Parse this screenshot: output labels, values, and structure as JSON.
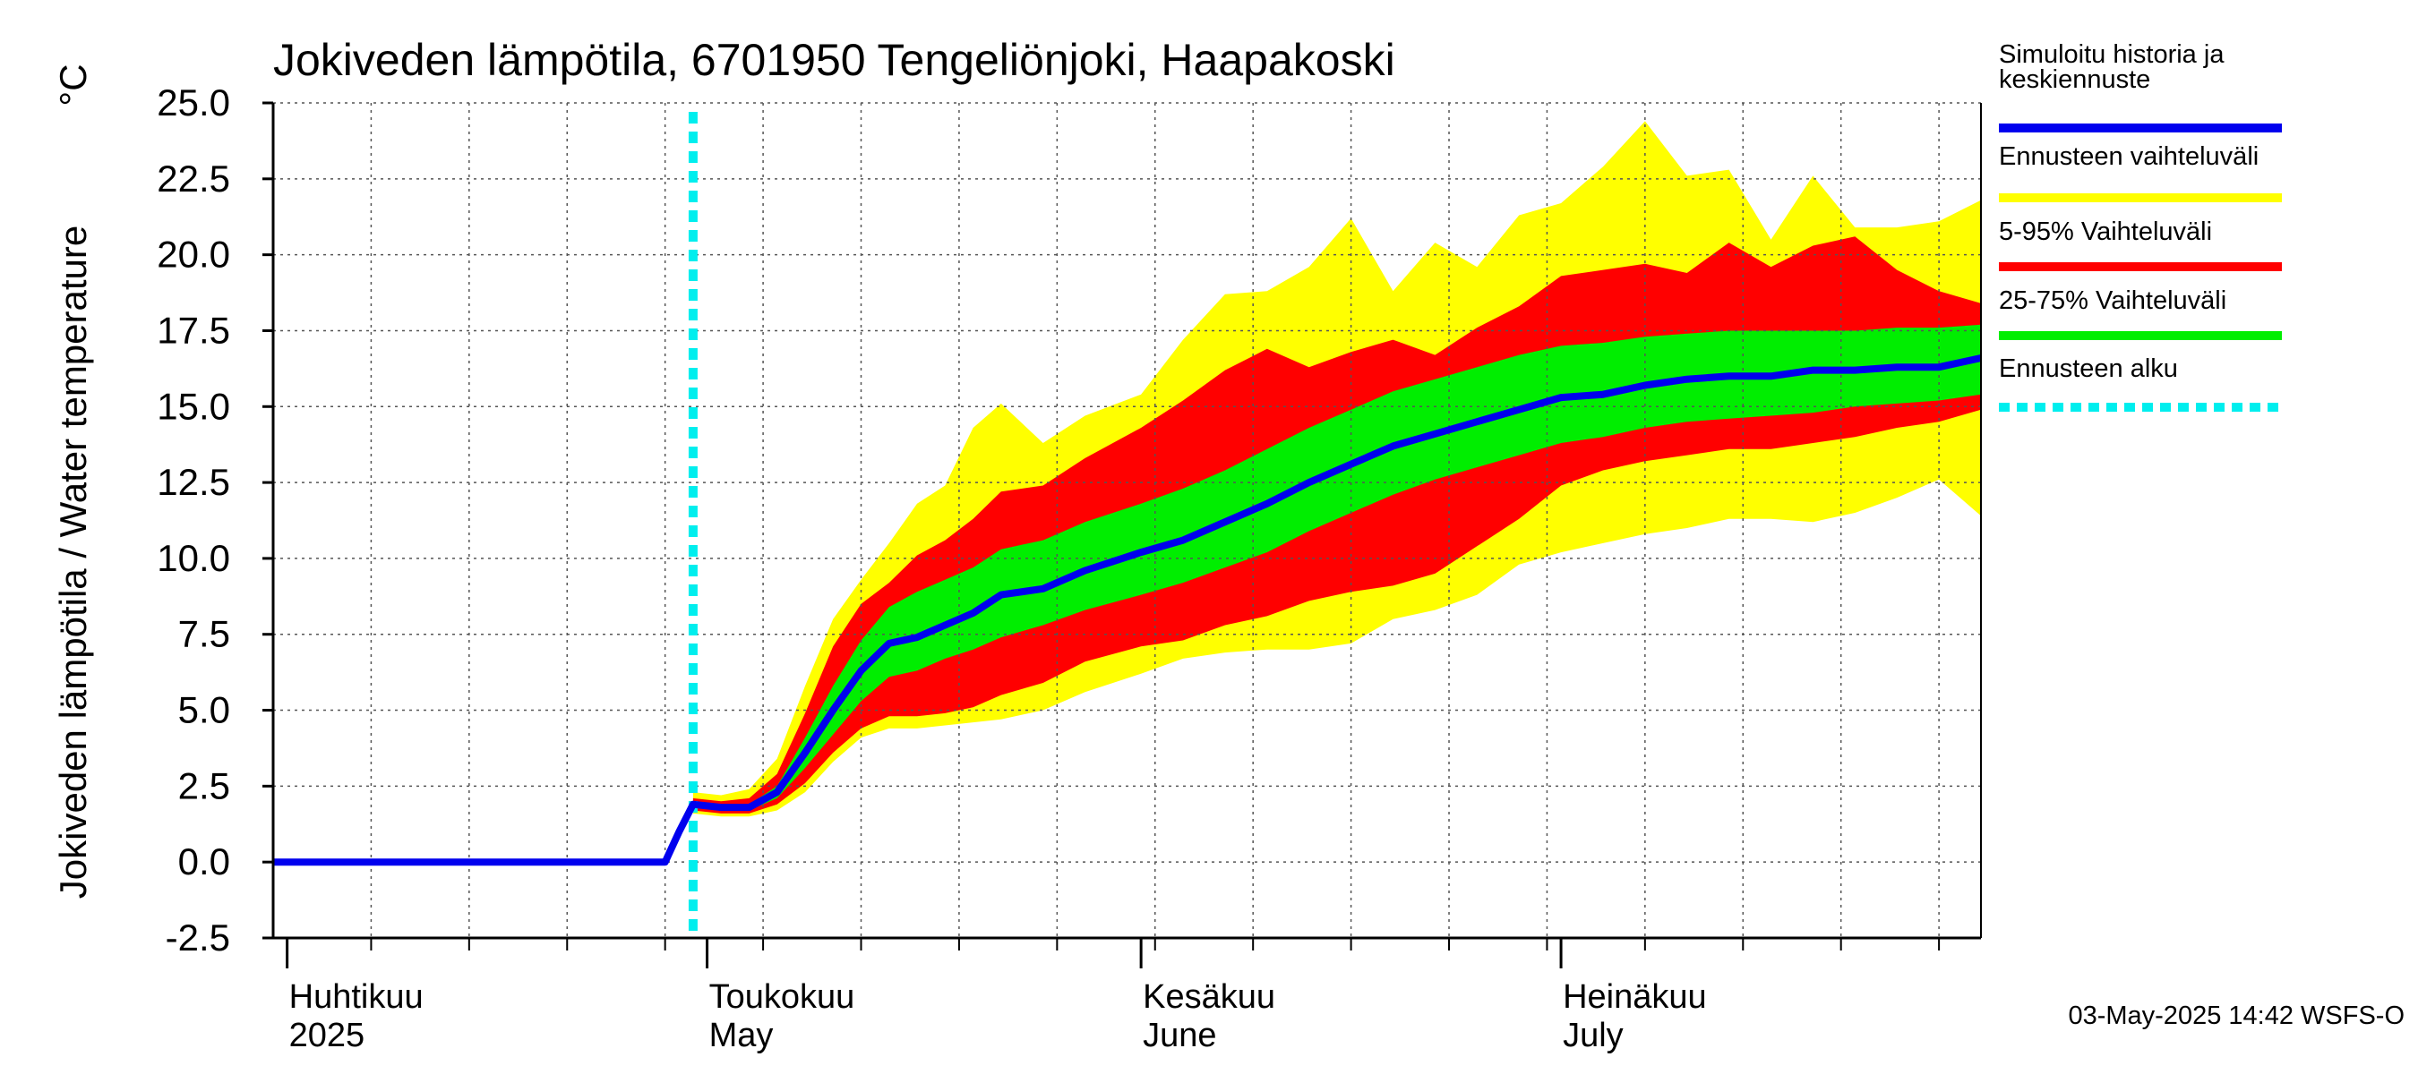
{
  "chart_data": {
    "type": "area",
    "title": "Jokiveden lämpötila, 6701950 Tengeliönjoki, Haapakoski",
    "ylabel": "Jokiveden lämpötila / Water temperature",
    "yunit": "°C",
    "ylim": [
      -2.5,
      25.0
    ],
    "yticks": [
      "25.0",
      "22.5",
      "20.0",
      "17.5",
      "15.0",
      "12.5",
      "10.0",
      "7.5",
      "5.0",
      "2.5",
      "0.0",
      "-2.5"
    ],
    "xlim": [
      "2025-03-31",
      "2025-07-31"
    ],
    "x_major_ticks": [
      {
        "date": "2025-04-01",
        "fi": "Huhtikuu",
        "en": "2025"
      },
      {
        "date": "2025-05-01",
        "fi": "Toukokuu",
        "en": "May"
      },
      {
        "date": "2025-06-01",
        "fi": "Kesäkuu",
        "en": "June"
      },
      {
        "date": "2025-07-01",
        "fi": "Heinäkuu",
        "en": "July"
      }
    ],
    "grid": true,
    "legend_position": "right",
    "legend": [
      {
        "label": "Simuloitu historia ja keskiennuste",
        "color": "#0000ee",
        "style": "solid"
      },
      {
        "label": "Ennusteen vaihteluväli",
        "color": "#ffff00",
        "style": "solid"
      },
      {
        "label": "5-95% Vaihteluväli",
        "color": "#ff0000",
        "style": "solid"
      },
      {
        "label": "25-75% Vaihteluväli",
        "color": "#00ee00",
        "style": "solid"
      },
      {
        "label": "Ennusteen alku",
        "color": "#00eeee",
        "style": "dotted"
      }
    ],
    "forecast_start": "2025-04-30",
    "history": {
      "dates": [
        "2025-03-31",
        "2025-04-28",
        "2025-04-29",
        "2025-04-30"
      ],
      "values": [
        0.0,
        0.0,
        1.0,
        1.9
      ]
    },
    "forecast": {
      "dates": [
        "2025-04-30",
        "2025-05-02",
        "2025-05-04",
        "2025-05-06",
        "2025-05-08",
        "2025-05-10",
        "2025-05-12",
        "2025-05-14",
        "2025-05-16",
        "2025-05-18",
        "2025-05-20",
        "2025-05-22",
        "2025-05-25",
        "2025-05-28",
        "2025-06-01",
        "2025-06-04",
        "2025-06-07",
        "2025-06-10",
        "2025-06-13",
        "2025-06-16",
        "2025-06-19",
        "2025-06-22",
        "2025-06-25",
        "2025-06-28",
        "2025-07-01",
        "2025-07-04",
        "2025-07-07",
        "2025-07-10",
        "2025-07-13",
        "2025-07-16",
        "2025-07-19",
        "2025-07-22",
        "2025-07-25",
        "2025-07-28",
        "2025-07-31"
      ],
      "median": [
        1.9,
        1.8,
        1.8,
        2.3,
        3.6,
        5.0,
        6.3,
        7.2,
        7.4,
        7.8,
        8.2,
        8.8,
        9.0,
        9.6,
        10.2,
        10.6,
        11.2,
        11.8,
        12.5,
        13.1,
        13.7,
        14.1,
        14.5,
        14.9,
        15.3,
        15.4,
        15.7,
        15.9,
        16.0,
        16.0,
        16.2,
        16.2,
        16.3,
        16.3,
        16.6
      ],
      "p25": [
        1.8,
        1.7,
        1.7,
        2.1,
        3.1,
        4.2,
        5.3,
        6.1,
        6.3,
        6.7,
        7.0,
        7.4,
        7.8,
        8.3,
        8.8,
        9.2,
        9.7,
        10.2,
        10.9,
        11.5,
        12.1,
        12.6,
        13.0,
        13.4,
        13.8,
        14.0,
        14.3,
        14.5,
        14.6,
        14.7,
        14.8,
        15.0,
        15.1,
        15.2,
        15.4
      ],
      "p75": [
        2.0,
        1.9,
        1.9,
        2.5,
        4.1,
        5.8,
        7.3,
        8.4,
        8.9,
        9.3,
        9.7,
        10.3,
        10.6,
        11.2,
        11.8,
        12.3,
        12.9,
        13.6,
        14.3,
        14.9,
        15.5,
        15.9,
        16.3,
        16.7,
        17.0,
        17.1,
        17.3,
        17.4,
        17.5,
        17.5,
        17.5,
        17.5,
        17.6,
        17.6,
        17.7
      ],
      "p5": [
        1.7,
        1.6,
        1.6,
        1.9,
        2.6,
        3.6,
        4.4,
        4.8,
        4.8,
        4.9,
        5.1,
        5.5,
        5.9,
        6.6,
        7.1,
        7.3,
        7.8,
        8.1,
        8.6,
        8.9,
        9.1,
        9.5,
        10.4,
        11.3,
        12.4,
        12.9,
        13.2,
        13.4,
        13.6,
        13.6,
        13.8,
        14.0,
        14.3,
        14.5,
        14.9
      ],
      "p95": [
        2.1,
        2.0,
        2.1,
        2.9,
        4.9,
        7.1,
        8.5,
        9.2,
        10.1,
        10.6,
        11.3,
        12.2,
        12.4,
        13.3,
        14.3,
        15.2,
        16.2,
        16.9,
        16.3,
        16.8,
        17.2,
        16.7,
        17.6,
        18.3,
        19.3,
        19.5,
        19.7,
        19.4,
        20.4,
        19.6,
        20.3,
        20.6,
        19.5,
        18.8,
        18.4
      ],
      "min": [
        1.6,
        1.5,
        1.5,
        1.7,
        2.3,
        3.3,
        4.1,
        4.4,
        4.4,
        4.5,
        4.6,
        4.7,
        5.0,
        5.6,
        6.2,
        6.7,
        6.9,
        7.0,
        7.0,
        7.2,
        8.0,
        8.3,
        8.8,
        9.8,
        10.2,
        10.5,
        10.8,
        11.0,
        11.3,
        11.3,
        11.2,
        11.5,
        12.0,
        12.6,
        11.4
      ],
      "max": [
        2.3,
        2.2,
        2.4,
        3.4,
        5.8,
        8.0,
        9.3,
        10.5,
        11.8,
        12.4,
        14.3,
        15.1,
        13.8,
        14.7,
        15.4,
        17.2,
        18.7,
        18.8,
        19.6,
        21.2,
        18.8,
        20.4,
        19.6,
        21.3,
        21.7,
        22.9,
        24.4,
        22.6,
        22.8,
        20.5,
        22.6,
        20.9,
        20.9,
        21.1,
        21.8
      ]
    }
  },
  "footer": {
    "timestamp": "03-May-2025 14:42 WSFS-O"
  }
}
